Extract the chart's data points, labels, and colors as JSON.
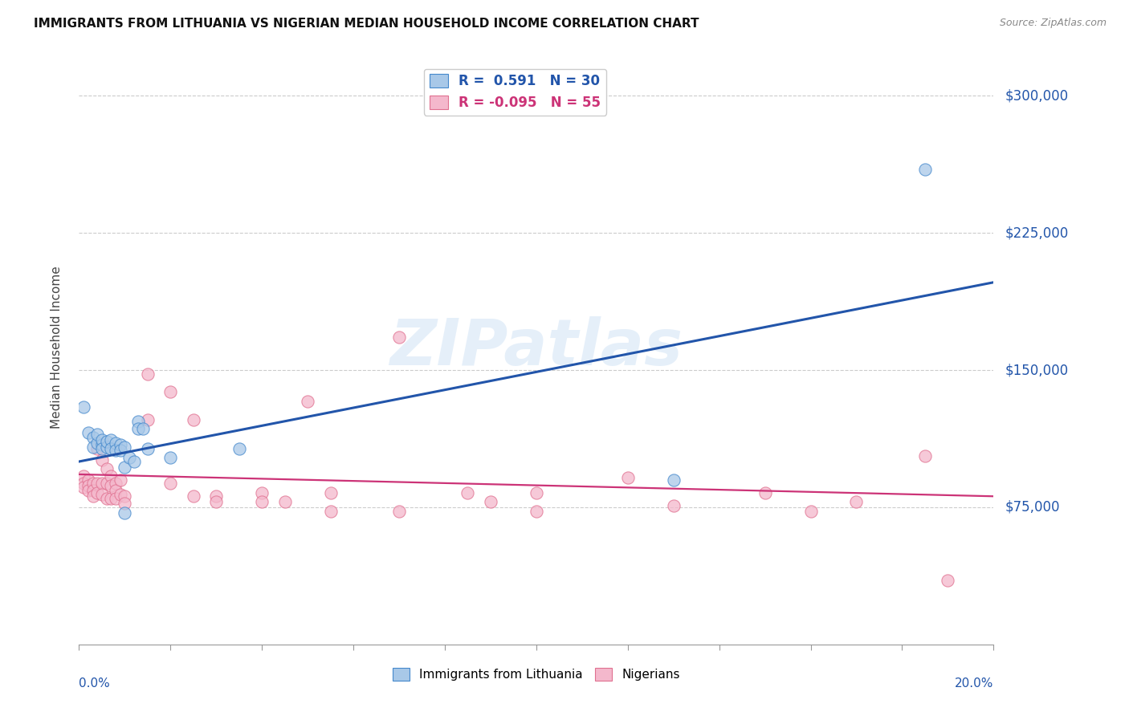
{
  "title": "IMMIGRANTS FROM LITHUANIA VS NIGERIAN MEDIAN HOUSEHOLD INCOME CORRELATION CHART",
  "source": "Source: ZipAtlas.com",
  "ylabel": "Median Household Income",
  "yticks": [
    75000,
    150000,
    225000,
    300000
  ],
  "ytick_labels": [
    "$75,000",
    "$150,000",
    "$225,000",
    "$300,000"
  ],
  "xlim": [
    0.0,
    0.2
  ],
  "ylim": [
    0,
    325000
  ],
  "legend1_R": "0.591",
  "legend1_N": "30",
  "legend2_R": "-0.095",
  "legend2_N": "55",
  "watermark": "ZIPatlas",
  "blue_color": "#a8c8e8",
  "blue_edge_color": "#4488cc",
  "pink_color": "#f4b8cc",
  "pink_edge_color": "#e07090",
  "blue_line_color": "#2255aa",
  "pink_line_color": "#cc3377",
  "blue_scatter": [
    [
      0.001,
      130000
    ],
    [
      0.002,
      116000
    ],
    [
      0.003,
      113000
    ],
    [
      0.003,
      108000
    ],
    [
      0.004,
      110000
    ],
    [
      0.004,
      115000
    ],
    [
      0.005,
      109000
    ],
    [
      0.005,
      112000
    ],
    [
      0.005,
      107000
    ],
    [
      0.006,
      108000
    ],
    [
      0.006,
      111000
    ],
    [
      0.007,
      112000
    ],
    [
      0.007,
      107000
    ],
    [
      0.008,
      110000
    ],
    [
      0.008,
      106000
    ],
    [
      0.009,
      109000
    ],
    [
      0.009,
      106000
    ],
    [
      0.01,
      108000
    ],
    [
      0.01,
      72000
    ],
    [
      0.01,
      97000
    ],
    [
      0.011,
      102000
    ],
    [
      0.012,
      100000
    ],
    [
      0.013,
      122000
    ],
    [
      0.013,
      118000
    ],
    [
      0.014,
      118000
    ],
    [
      0.015,
      107000
    ],
    [
      0.02,
      102000
    ],
    [
      0.035,
      107000
    ],
    [
      0.13,
      90000
    ],
    [
      0.185,
      260000
    ]
  ],
  "pink_scatter": [
    [
      0.001,
      92000
    ],
    [
      0.001,
      88000
    ],
    [
      0.001,
      86000
    ],
    [
      0.002,
      90000
    ],
    [
      0.002,
      87000
    ],
    [
      0.002,
      84000
    ],
    [
      0.003,
      88000
    ],
    [
      0.003,
      84000
    ],
    [
      0.003,
      81000
    ],
    [
      0.004,
      107000
    ],
    [
      0.004,
      88000
    ],
    [
      0.004,
      83000
    ],
    [
      0.005,
      101000
    ],
    [
      0.005,
      88000
    ],
    [
      0.005,
      82000
    ],
    [
      0.006,
      96000
    ],
    [
      0.006,
      88000
    ],
    [
      0.006,
      80000
    ],
    [
      0.007,
      92000
    ],
    [
      0.007,
      87000
    ],
    [
      0.007,
      80000
    ],
    [
      0.008,
      88000
    ],
    [
      0.008,
      84000
    ],
    [
      0.008,
      80000
    ],
    [
      0.009,
      90000
    ],
    [
      0.009,
      82000
    ],
    [
      0.01,
      81000
    ],
    [
      0.01,
      77000
    ],
    [
      0.015,
      148000
    ],
    [
      0.015,
      123000
    ],
    [
      0.02,
      138000
    ],
    [
      0.02,
      88000
    ],
    [
      0.025,
      123000
    ],
    [
      0.025,
      81000
    ],
    [
      0.03,
      81000
    ],
    [
      0.03,
      78000
    ],
    [
      0.04,
      83000
    ],
    [
      0.04,
      78000
    ],
    [
      0.045,
      78000
    ],
    [
      0.05,
      133000
    ],
    [
      0.055,
      83000
    ],
    [
      0.055,
      73000
    ],
    [
      0.07,
      168000
    ],
    [
      0.07,
      73000
    ],
    [
      0.085,
      83000
    ],
    [
      0.09,
      78000
    ],
    [
      0.1,
      83000
    ],
    [
      0.1,
      73000
    ],
    [
      0.12,
      91000
    ],
    [
      0.13,
      76000
    ],
    [
      0.15,
      83000
    ],
    [
      0.16,
      73000
    ],
    [
      0.17,
      78000
    ],
    [
      0.185,
      103000
    ],
    [
      0.19,
      35000
    ]
  ],
  "blue_trendline": [
    [
      0.0,
      100000
    ],
    [
      0.2,
      198000
    ]
  ],
  "pink_trendline": [
    [
      0.0,
      93000
    ],
    [
      0.2,
      81000
    ]
  ]
}
